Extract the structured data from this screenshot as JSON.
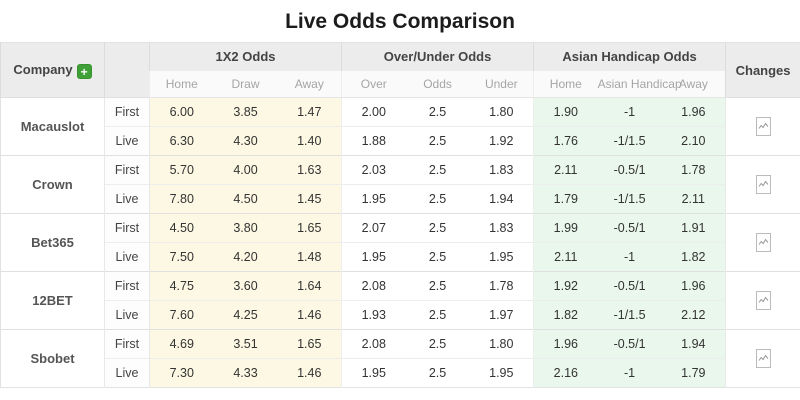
{
  "title": "Live Odds Comparison",
  "table": {
    "company_header": "Company",
    "add_button_label": "+",
    "changes_header": "Changes",
    "groups": [
      {
        "label": "1X2 Odds",
        "cols": [
          "Home",
          "Draw",
          "Away"
        ]
      },
      {
        "label": "Over/Under Odds",
        "cols": [
          "Over",
          "Odds",
          "Under"
        ]
      },
      {
        "label": "Asian Handicap Odds",
        "cols": [
          "Home",
          "Asian Handicap",
          "Away"
        ]
      }
    ],
    "companies": [
      {
        "name": "Macauslot",
        "rows": [
          {
            "label": "First",
            "x12": [
              "6.00",
              "3.85",
              "1.47"
            ],
            "ou": [
              "2.00",
              "2.5",
              "1.80"
            ],
            "ah": [
              "1.90",
              "-1",
              "1.96"
            ]
          },
          {
            "label": "Live",
            "x12": [
              "6.30",
              "4.30",
              "1.40"
            ],
            "ou": [
              "1.88",
              "2.5",
              "1.92"
            ],
            "ah": [
              "1.76",
              "-1/1.5",
              "2.10"
            ]
          }
        ]
      },
      {
        "name": "Crown",
        "rows": [
          {
            "label": "First",
            "x12": [
              "5.70",
              "4.00",
              "1.63"
            ],
            "ou": [
              "2.03",
              "2.5",
              "1.83"
            ],
            "ah": [
              "2.11",
              "-0.5/1",
              "1.78"
            ]
          },
          {
            "label": "Live",
            "x12": [
              "7.80",
              "4.50",
              "1.45"
            ],
            "ou": [
              "1.95",
              "2.5",
              "1.94"
            ],
            "ah": [
              "1.79",
              "-1/1.5",
              "2.11"
            ]
          }
        ]
      },
      {
        "name": "Bet365",
        "rows": [
          {
            "label": "First",
            "x12": [
              "4.50",
              "3.80",
              "1.65"
            ],
            "ou": [
              "2.07",
              "2.5",
              "1.83"
            ],
            "ah": [
              "1.99",
              "-0.5/1",
              "1.91"
            ]
          },
          {
            "label": "Live",
            "x12": [
              "7.50",
              "4.20",
              "1.48"
            ],
            "ou": [
              "1.95",
              "2.5",
              "1.95"
            ],
            "ah": [
              "2.11",
              "-1",
              "1.82"
            ]
          }
        ]
      },
      {
        "name": "12BET",
        "rows": [
          {
            "label": "First",
            "x12": [
              "4.75",
              "3.60",
              "1.64"
            ],
            "ou": [
              "2.08",
              "2.5",
              "1.78"
            ],
            "ah": [
              "1.92",
              "-0.5/1",
              "1.96"
            ]
          },
          {
            "label": "Live",
            "x12": [
              "7.60",
              "4.25",
              "1.46"
            ],
            "ou": [
              "1.93",
              "2.5",
              "1.97"
            ],
            "ah": [
              "1.82",
              "-1/1.5",
              "2.12"
            ]
          }
        ]
      },
      {
        "name": "Sbobet",
        "rows": [
          {
            "label": "First",
            "x12": [
              "4.69",
              "3.51",
              "1.65"
            ],
            "ou": [
              "2.08",
              "2.5",
              "1.80"
            ],
            "ah": [
              "1.96",
              "-0.5/1",
              "1.94"
            ]
          },
          {
            "label": "Live",
            "x12": [
              "7.30",
              "4.33",
              "1.46"
            ],
            "ou": [
              "1.95",
              "2.5",
              "1.95"
            ],
            "ah": [
              "2.16",
              "-1",
              "1.79"
            ]
          }
        ]
      }
    ],
    "icons": {
      "add": "plus-in-green-square",
      "changes": "mini-line-chart"
    },
    "colors": {
      "accent_green": "#3fa037",
      "x12_bg": "#fcf8e3",
      "ah_bg": "#e9f7ec",
      "header_bg": "#ececec",
      "subheader_text": "#a5a5a5"
    }
  }
}
